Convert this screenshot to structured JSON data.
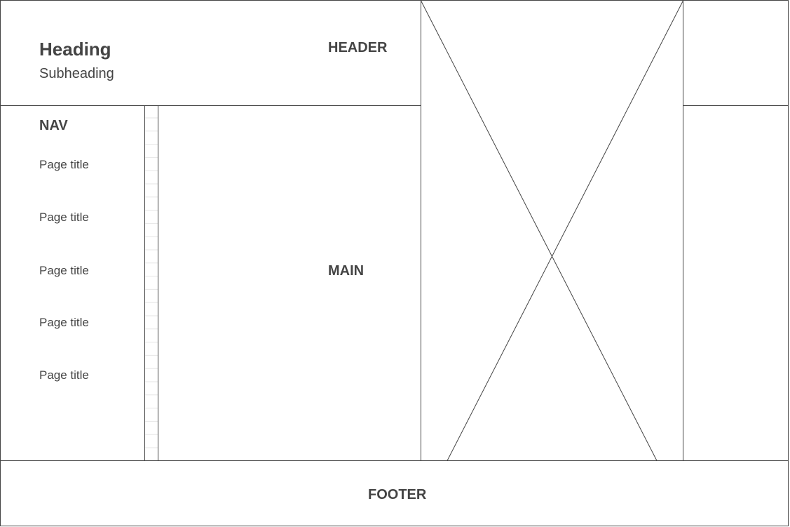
{
  "header": {
    "heading": "Heading",
    "subheading": "Subheading",
    "label": "HEADER"
  },
  "nav": {
    "label": "NAV",
    "items": [
      {
        "label": "Page title"
      },
      {
        "label": "Page title"
      },
      {
        "label": "Page title"
      },
      {
        "label": "Page title"
      },
      {
        "label": "Page title"
      }
    ]
  },
  "main": {
    "label": "MAIN"
  },
  "footer": {
    "label": "FOOTER"
  },
  "colors": {
    "line": "#444444",
    "scroll_grid": "#e6e6e6",
    "text": "#444444",
    "background": "#ffffff"
  },
  "image_placeholder": {
    "icon": "image-placeholder-cross"
  }
}
